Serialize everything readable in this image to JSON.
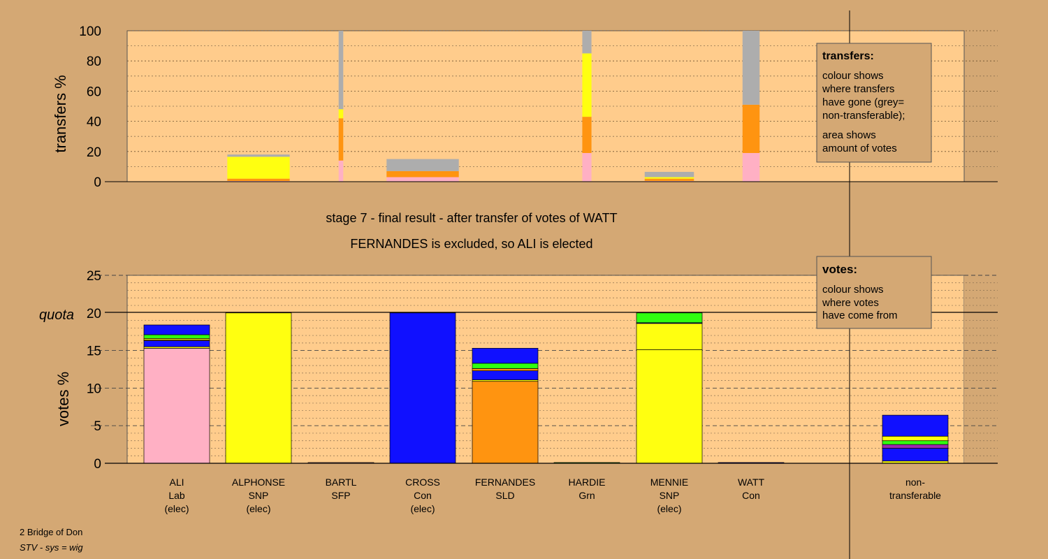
{
  "chart_data": [
    {
      "type": "bar",
      "ylabel": "transfers %",
      "ylim": [
        0,
        100
      ],
      "yticks": [
        0,
        20,
        40,
        60,
        80,
        100
      ],
      "legend": {
        "title": "transfers:",
        "lines": [
          "colour shows",
          "where transfers",
          "have gone (grey=",
          "non-transferable);",
          "area shows",
          "amount of votes"
        ]
      },
      "note": "stacks ordered bottom-to-top; colour = destination candidate",
      "bars": [
        {
          "candidate": "ALPHONSE",
          "width_share": 0.95,
          "segments": [
            {
              "color": "#FFB0C4",
              "value": 0.5
            },
            {
              "color": "#FF9410",
              "value": 1.5
            },
            {
              "color": "#FFFF10",
              "value": 14.5
            },
            {
              "color": "#ADADAD",
              "value": 1.5
            }
          ]
        },
        {
          "candidate": "BARTL",
          "width_share": 0.07,
          "segments": [
            {
              "color": "#FFB0C4",
              "value": 14
            },
            {
              "color": "#FF9410",
              "value": 28
            },
            {
              "color": "#FFFF10",
              "value": 6
            },
            {
              "color": "#ADADAD",
              "value": 52
            }
          ]
        },
        {
          "candidate": "CROSS",
          "width_share": 1.1,
          "segments": [
            {
              "color": "#FFB0C4",
              "value": 3
            },
            {
              "color": "#FF9410",
              "value": 4
            },
            {
              "color": "#ADADAD",
              "value": 8
            }
          ]
        },
        {
          "candidate": "HARDIE",
          "width_share": 0.14,
          "segments": [
            {
              "color": "#FFB0C4",
              "value": 19
            },
            {
              "color": "#FF9410",
              "value": 24
            },
            {
              "color": "#FFFF10",
              "value": 42
            },
            {
              "color": "#ADADAD",
              "value": 15
            }
          ]
        },
        {
          "candidate": "MENNIE",
          "width_share": 0.75,
          "segments": [
            {
              "color": "#FFB0C4",
              "value": 0.5
            },
            {
              "color": "#FF9410",
              "value": 1.5
            },
            {
              "color": "#FFFF10",
              "value": 1
            },
            {
              "color": "#ADADAD",
              "value": 3.5
            }
          ]
        },
        {
          "candidate": "WATT",
          "width_share": 0.26,
          "segments": [
            {
              "color": "#FFB0C4",
              "value": 19
            },
            {
              "color": "#FF9410",
              "value": 32
            },
            {
              "color": "#ADADAD",
              "value": 49
            }
          ]
        }
      ]
    },
    {
      "type": "bar",
      "ylabel": "votes %",
      "ylim": [
        0,
        25
      ],
      "yticks": [
        0,
        5,
        10,
        15,
        20,
        25
      ],
      "quota": 20,
      "quota_label": "quota",
      "legend": {
        "title": "votes:",
        "lines": [
          "colour shows",
          "where votes",
          "have come from"
        ]
      },
      "note": "stacks ordered bottom-to-top; colour = origin candidate",
      "categories": [
        {
          "name": "ALI",
          "party": "Lab",
          "status": "(elec)"
        },
        {
          "name": "ALPHONSE",
          "party": "SNP",
          "status": "(elec)"
        },
        {
          "name": "BARTL",
          "party": "SFP",
          "status": ""
        },
        {
          "name": "CROSS",
          "party": "Con",
          "status": "(elec)"
        },
        {
          "name": "FERNANDES",
          "party": "SLD",
          "status": ""
        },
        {
          "name": "HARDIE",
          "party": "Grn",
          "status": ""
        },
        {
          "name": "MENNIE",
          "party": "SNP",
          "status": "(elec)"
        },
        {
          "name": "WATT",
          "party": "Con",
          "status": ""
        }
      ],
      "nontransferable_label": [
        "non-",
        "transferable"
      ],
      "bars": [
        {
          "candidate": "ALI",
          "segments": [
            {
              "color": "#FFB0C4",
              "value": 15.3
            },
            {
              "color": "#FFFF10",
              "value": 0.2
            },
            {
              "color": "#1010FF",
              "value": 0.8
            },
            {
              "color": "#FF9410",
              "value": 0.1
            },
            {
              "color": "#FFFF10",
              "value": 0.2
            },
            {
              "color": "#30FF10",
              "value": 0.5
            },
            {
              "color": "#1010FF",
              "value": 1.3
            }
          ]
        },
        {
          "candidate": "ALPHONSE",
          "segments": [
            {
              "color": "#FFFF10",
              "value": 20
            }
          ]
        },
        {
          "candidate": "BARTL",
          "segments": [
            {
              "color": "#FFB0C4",
              "value": 0.1
            }
          ]
        },
        {
          "candidate": "CROSS",
          "segments": [
            {
              "color": "#1010FF",
              "value": 20
            }
          ]
        },
        {
          "candidate": "FERNANDES",
          "segments": [
            {
              "color": "#FF9410",
              "value": 10.9
            },
            {
              "color": "#FFFF10",
              "value": 0.2
            },
            {
              "color": "#1010FF",
              "value": 1.2
            },
            {
              "color": "#FF9410",
              "value": 0.3
            },
            {
              "color": "#30FF10",
              "value": 0.7
            },
            {
              "color": "#1010FF",
              "value": 2.0
            }
          ]
        },
        {
          "candidate": "HARDIE",
          "segments": [
            {
              "color": "#30FF10",
              "value": 0.1
            }
          ]
        },
        {
          "candidate": "MENNIE",
          "segments": [
            {
              "color": "#FFFF10",
              "value": 15.1
            },
            {
              "color": "#FFFF10",
              "value": 3.5
            },
            {
              "color": "#1010FF",
              "value": 0.1
            },
            {
              "color": "#30FF10",
              "value": 1.3
            }
          ]
        },
        {
          "candidate": "WATT",
          "segments": [
            {
              "color": "#1010FF",
              "value": 0.1
            }
          ]
        },
        {
          "candidate": "non-transferable",
          "segments": [
            {
              "color": "#FFFF10",
              "value": 0.3
            },
            {
              "color": "#1010FF",
              "value": 1.7
            },
            {
              "color": "#9C27B0",
              "value": 0.5
            },
            {
              "color": "#30FF10",
              "value": 0.5
            },
            {
              "color": "#FFFF10",
              "value": 0.6
            },
            {
              "color": "#1010FF",
              "value": 2.8
            }
          ]
        }
      ]
    }
  ],
  "stage_title": "stage 7 - final result - after transfer of votes of WATT",
  "stage_subtitle": "FERNANDES is excluded, so ALI is elected",
  "footer": {
    "ward": "2 Bridge of Don",
    "system": "STV - sys = wig"
  },
  "colors": {
    "background": "#D4A874",
    "plot_area": "#FFCC8C",
    "grey": "#ADADAD"
  }
}
